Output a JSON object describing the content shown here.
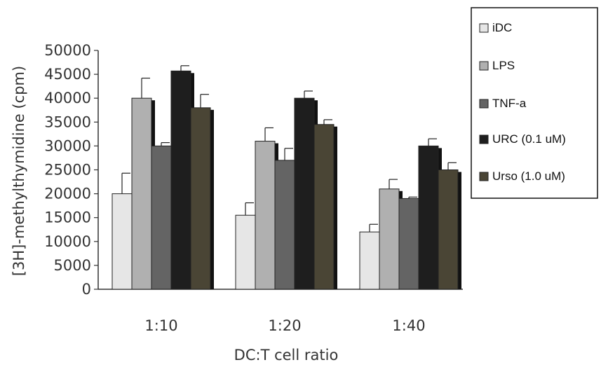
{
  "chart_data": {
    "type": "bar",
    "categories": [
      "1:10",
      "1:20",
      "1:40"
    ],
    "xlabel": "DC:T cell ratio",
    "ylabel": "[3H]-methylthymidine (cpm)",
    "ylim": [
      0,
      50000
    ],
    "yticks": [
      0,
      5000,
      10000,
      15000,
      20000,
      25000,
      30000,
      35000,
      40000,
      45000,
      50000
    ],
    "legend_position": "right",
    "grid": false,
    "error_bars": "positive",
    "series": [
      {
        "name": "iDC",
        "color": "#e6e6e6",
        "values": [
          20000,
          15500,
          12000
        ],
        "errors": [
          4300,
          2600,
          1600
        ]
      },
      {
        "name": "LPS",
        "color": "#b0b0b0",
        "values": [
          40000,
          31000,
          21000
        ],
        "errors": [
          4200,
          2800,
          2000
        ]
      },
      {
        "name": "TNF-a",
        "color": "#646464",
        "values": [
          30000,
          27000,
          19000
        ],
        "errors": [
          700,
          2500,
          300
        ]
      },
      {
        "name": "URC (0.1 uM)",
        "color": "#1e1e1e",
        "values": [
          45700,
          40000,
          30000
        ],
        "errors": [
          1100,
          1500,
          1500
        ]
      },
      {
        "name": "Urso (1.0 uM)",
        "color": "#4a4535",
        "values": [
          38000,
          34500,
          25000
        ],
        "errors": [
          2800,
          1000,
          1500
        ]
      }
    ]
  }
}
